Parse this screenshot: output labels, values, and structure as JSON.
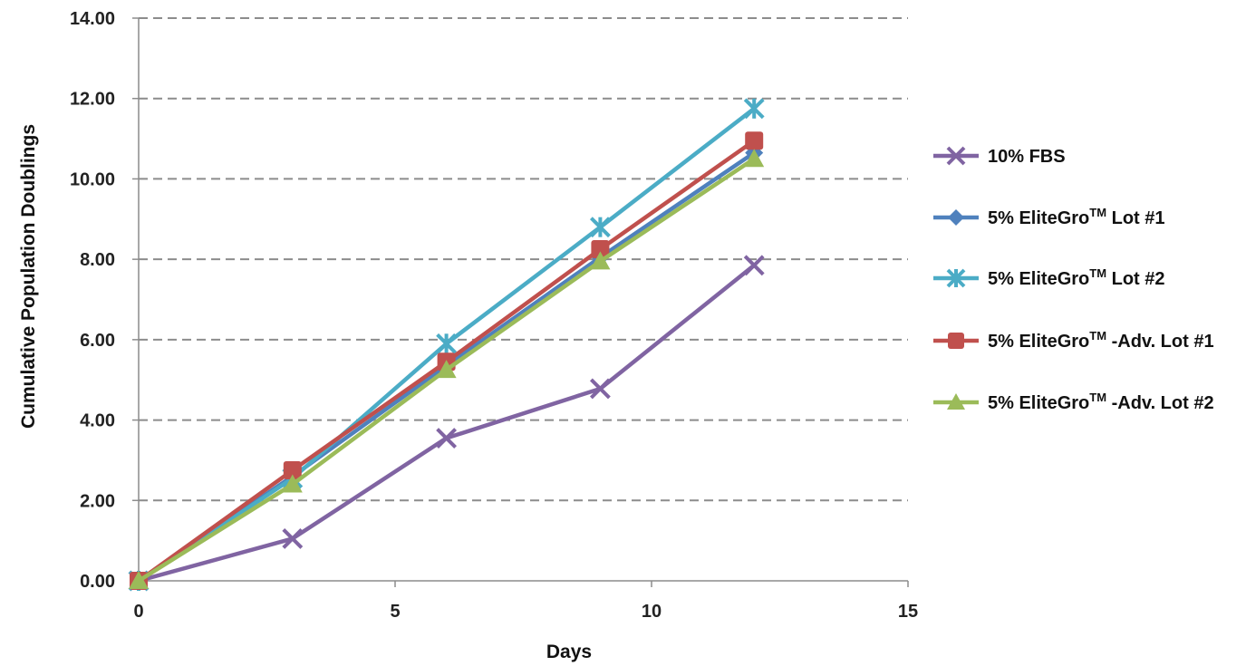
{
  "chart_data": {
    "type": "line",
    "xlabel": "Days",
    "ylabel": "Cumulative  Population Doublings",
    "xlim": [
      0,
      15
    ],
    "ylim": [
      0,
      14
    ],
    "x_ticks": [
      "0",
      "5",
      "10",
      "15"
    ],
    "y_ticks": [
      "0.00",
      "2.00",
      "4.00",
      "6.00",
      "8.00",
      "10.00",
      "12.00",
      "14.00"
    ],
    "grid": "horizontal dashed",
    "legend_position": "right",
    "x": [
      0,
      3,
      6,
      9,
      12
    ],
    "series": [
      {
        "name": "10% FBS",
        "legend_parts": [
          "10% FBS",
          "",
          ""
        ],
        "color": "#8064A2",
        "marker": "x",
        "values": [
          0.0,
          1.05,
          3.55,
          4.78,
          7.85
        ]
      },
      {
        "name": "5% EliteGroTM Lot #1",
        "legend_parts": [
          "5% EliteGro",
          "TM",
          " Lot #1"
        ],
        "color": "#4F81BD",
        "marker": "diamond",
        "values": [
          0.0,
          2.6,
          5.35,
          8.05,
          10.65
        ]
      },
      {
        "name": "5% EliteGroTM Lot #2",
        "legend_parts": [
          "5% EliteGro",
          "TM",
          " Lot #2"
        ],
        "color": "#4BACC6",
        "marker": "star",
        "values": [
          0.0,
          2.55,
          5.9,
          8.8,
          11.75
        ]
      },
      {
        "name": "5% EliteGroTM -Adv. Lot #1",
        "legend_parts": [
          "5% EliteGro",
          "TM",
          " -Adv. Lot #1"
        ],
        "color": "#C0504D",
        "marker": "square",
        "values": [
          0.0,
          2.75,
          5.45,
          8.25,
          10.95
        ]
      },
      {
        "name": "5% EliteGroTM -Adv. Lot #2",
        "legend_parts": [
          "5% EliteGro",
          "TM",
          " -Adv. Lot #2"
        ],
        "color": "#9BBB59",
        "marker": "triangle",
        "values": [
          0.0,
          2.4,
          5.25,
          7.95,
          10.5
        ]
      }
    ]
  }
}
